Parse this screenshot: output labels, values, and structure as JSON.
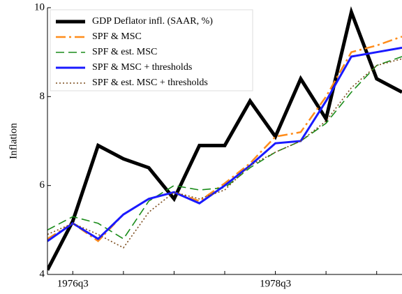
{
  "chart_data": {
    "type": "line",
    "ylabel": "Inflation",
    "categories": [
      null,
      "1976q3",
      null,
      null,
      null,
      null,
      null,
      null,
      null,
      "1978q3",
      null,
      null,
      null,
      null,
      null
    ],
    "ylim": [
      4,
      10
    ],
    "yticks": [
      4,
      6,
      8,
      10
    ],
    "legend": "upper-left",
    "series": [
      {
        "name": "GDP Deflator infl. (SAAR, %)",
        "color": "#000000",
        "linestyle": "solid",
        "values": [
          4.1,
          5.2,
          6.9,
          6.6,
          6.4,
          5.7,
          6.9,
          6.9,
          7.9,
          7.1,
          8.4,
          7.5,
          9.9,
          8.4,
          8.1
        ]
      },
      {
        "name": "SPF & MSC",
        "color": "#ff8c1a",
        "linestyle": "dashdot",
        "values": [
          4.8,
          5.15,
          4.75,
          5.35,
          5.7,
          5.85,
          5.65,
          6.05,
          6.5,
          7.1,
          7.2,
          8.0,
          9.0,
          9.15,
          9.35
        ]
      },
      {
        "name": "SPF & est. MSC",
        "color": "#1a8c1a",
        "linestyle": "dashed",
        "values": [
          5.0,
          5.3,
          5.15,
          4.8,
          5.65,
          6.0,
          5.9,
          5.95,
          6.4,
          6.75,
          7.0,
          7.4,
          8.1,
          8.7,
          8.9
        ]
      },
      {
        "name": "SPF & MSC + thresholds",
        "color": "#1a1aff",
        "linestyle": "solid",
        "values": [
          4.75,
          5.15,
          4.8,
          5.35,
          5.7,
          5.85,
          5.6,
          6.0,
          6.45,
          6.95,
          7.0,
          7.9,
          8.9,
          9.0,
          9.1
        ]
      },
      {
        "name": "SPF & est. MSC + thresholds",
        "color": "#7a4a1a",
        "linestyle": "dotted",
        "values": [
          4.9,
          5.15,
          4.9,
          4.6,
          5.4,
          5.85,
          5.7,
          5.9,
          6.45,
          6.75,
          7.0,
          7.45,
          8.2,
          8.7,
          8.85
        ]
      }
    ]
  }
}
